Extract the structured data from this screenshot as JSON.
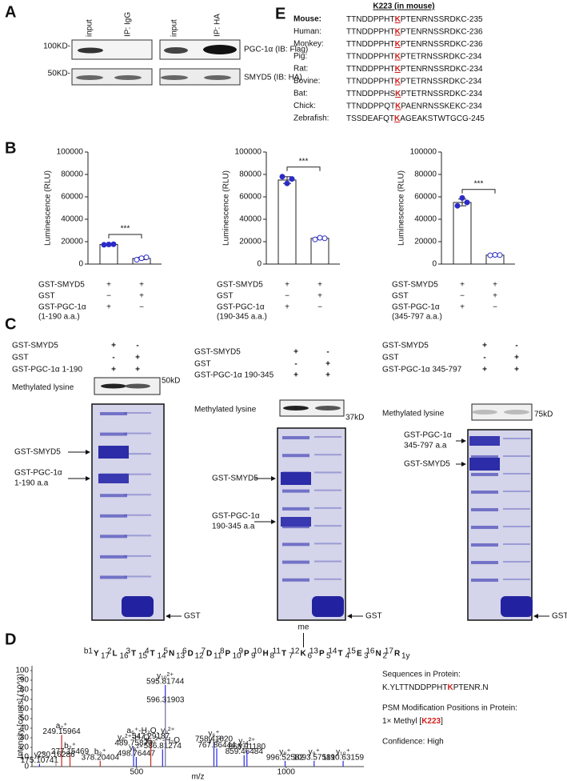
{
  "panel_a": {
    "label": "A",
    "lanes": [
      "input",
      "IP: IgG",
      "input",
      "IP: HA"
    ],
    "markers": [
      "100KD-",
      "50KD-"
    ],
    "blots": [
      "PGC-1α (IB: Flag)",
      "SMYD5 (IB: HA)"
    ]
  },
  "panel_e": {
    "label": "E",
    "title": "K223 (in mouse)",
    "highlight_color": "#d0201c",
    "rows": [
      {
        "species": "Mouse:",
        "before": "TTNDDPPHT",
        "k": "K",
        "after": "PTENRNSSRDKC-235"
      },
      {
        "species": "Human:",
        "before": "TTNDDPPHT",
        "k": "K",
        "after": "PTENRNSSRDKC-236"
      },
      {
        "species": "Monkey:",
        "before": "TTNDDPPHT",
        "k": "K",
        "after": "PTENRNSSRDKC-236"
      },
      {
        "species": "Pig:",
        "before": "TTNDDPPHT",
        "k": "K",
        "after": "PTETRNSSRDKC-234"
      },
      {
        "species": "Rat:",
        "before": "TTNDDPPHT",
        "k": "K",
        "after": "PTENRNSSRDKC-234"
      },
      {
        "species": "Bovine:",
        "before": "TTNDDPPHT",
        "k": "K",
        "after": "PTETRNSSRDKC-234"
      },
      {
        "species": "Bat:",
        "before": "TTNDDPPHS",
        "k": "K",
        "after": "PTETRNSSRDKC-234"
      },
      {
        "species": "Chick:",
        "before": "TTNDDPPQT",
        "k": "K",
        "after": "PAENRNSSKEKC-234"
      },
      {
        "species": "Zebrafish:",
        "before": "TSSDEAFQT",
        "k": "K",
        "after": "AGEAKSTWTGCG-245"
      }
    ]
  },
  "panel_b": {
    "label": "B"
  },
  "chart_data": [
    {
      "type": "bar",
      "ylabel": "Luminescence (RLU)",
      "ylim": [
        0,
        100000
      ],
      "yticks": [
        0,
        20000,
        40000,
        60000,
        80000,
        100000
      ],
      "values": [
        17500,
        5000
      ],
      "errors": [
        400,
        1000
      ],
      "points": [
        [
          17200,
          17500,
          17700
        ],
        [
          3800,
          5200,
          6000
        ]
      ],
      "colors": [
        "#2b2bc8",
        "#ffffff"
      ],
      "significance": "***",
      "rows": [
        {
          "label": [
            "GST-SMYD5"
          ],
          "signs": [
            "+",
            "+"
          ]
        },
        {
          "label": [
            "GST"
          ],
          "signs": [
            "−",
            "+"
          ]
        },
        {
          "label": [
            "GST-PGC-1α",
            "(1-190 a.a.)"
          ],
          "signs": [
            "+",
            "−"
          ]
        }
      ]
    },
    {
      "type": "bar",
      "ylabel": "Luminescence (RLU)",
      "ylim": [
        0,
        100000
      ],
      "yticks": [
        0,
        20000,
        40000,
        60000,
        80000,
        100000
      ],
      "values": [
        75000,
        23000
      ],
      "errors": [
        3000,
        800
      ],
      "points": [
        [
          78000,
          72000,
          76000
        ],
        [
          22000,
          23500,
          23000
        ]
      ],
      "colors": [
        "#2b2bc8",
        "#ffffff"
      ],
      "significance": "***",
      "rows": [
        {
          "label": [
            "GST-SMYD5"
          ],
          "signs": [
            "+",
            "+"
          ]
        },
        {
          "label": [
            "GST"
          ],
          "signs": [
            "−",
            "+"
          ]
        },
        {
          "label": [
            "GST-PGC-1α",
            "(190-345 a.a.)"
          ],
          "signs": [
            "+",
            "−"
          ]
        }
      ]
    },
    {
      "type": "bar",
      "ylabel": "Luminescence (RLU)",
      "ylim": [
        0,
        100000
      ],
      "yticks": [
        0,
        20000,
        40000,
        60000,
        80000,
        100000
      ],
      "values": [
        55000,
        8000
      ],
      "errors": [
        3000,
        300
      ],
      "points": [
        [
          52000,
          59000,
          55000
        ],
        [
          7800,
          8200,
          8000
        ]
      ],
      "colors": [
        "#2b2bc8",
        "#ffffff"
      ],
      "significance": "***",
      "rows": [
        {
          "label": [
            "GST-SMYD5"
          ],
          "signs": [
            "+",
            "+"
          ]
        },
        {
          "label": [
            "GST"
          ],
          "signs": [
            "−",
            "+"
          ]
        },
        {
          "label": [
            "GST-PGC-1α",
            "(345-797 a.a.)"
          ],
          "signs": [
            "+",
            "−"
          ]
        }
      ]
    },
    {
      "type": "stem",
      "xlabel": "m/z",
      "ylabel": "Intensity [counts] (10^3)",
      "xlim": [
        150,
        1260
      ],
      "ylim": [
        0,
        105
      ],
      "xticks": [
        500,
        1000
      ],
      "yticks": [
        0,
        10,
        20,
        30,
        40,
        50,
        60,
        70,
        80,
        90,
        100
      ],
      "peaks": [
        {
          "x": 175.10741,
          "y": 3,
          "color": "#2a2adf",
          "label": [
            "y₁⁺",
            "175.10741"
          ]
        },
        {
          "x": 230.16286,
          "y": 9,
          "color": "#999999",
          "label": [
            "230.16286"
          ]
        },
        {
          "x": 249.15964,
          "y": 33,
          "color": "#c0281c",
          "label": [
            "a₂⁺",
            "249.15964"
          ]
        },
        {
          "x": 277.15469,
          "y": 12,
          "color": "#c0281c",
          "label": [
            "b₂⁺",
            "277.15469"
          ]
        },
        {
          "x": 378.20404,
          "y": 6,
          "color": "#c0281c",
          "label": [
            "b₃⁺",
            "378.20404"
          ]
        },
        {
          "x": 489.7587,
          "y": 21,
          "color": "#2a2adf",
          "label": [
            "y₈²⁺-H₂O",
            "489.75870"
          ]
        },
        {
          "x": 498.76447,
          "y": 10,
          "color": "#2a2adf",
          "label": [
            "y₈²⁺",
            "498.76447"
          ]
        },
        {
          "x": 547.29187,
          "y": 28,
          "color": "#c0281c",
          "label": [
            "a₆⁺-H₂O, y₉²⁺",
            "547.29187"
          ]
        },
        {
          "x": 586.81274,
          "y": 18,
          "color": "#2a2adf",
          "label": [
            "y₁₀²⁺-H₂O",
            "586.81274"
          ]
        },
        {
          "x": 595.81744,
          "y": 85,
          "color": "#2a2adf",
          "label": [
            "y₁₀²⁺",
            "595.81744"
          ]
        },
        {
          "x": 596.31903,
          "y": 66,
          "color": "#999999",
          "label": [
            "596.31903"
          ]
        },
        {
          "x": 758.4162,
          "y": 25,
          "color": "#2a2adf",
          "label": [
            "y₆⁺",
            "758.41620"
          ]
        },
        {
          "x": 767.86444,
          "y": 19,
          "color": "#2a2adf",
          "label": [
            "y₁₃²⁺",
            "767.86444"
          ]
        },
        {
          "x": 859.46484,
          "y": 12,
          "color": "#2a2adf",
          "label": [
            "y₇⁺",
            "859.46484"
          ]
        },
        {
          "x": 868.9118,
          "y": 17,
          "color": "#2a2adf",
          "label": [
            "y₁₄²⁺",
            "868.91180"
          ]
        },
        {
          "x": 996.52582,
          "y": 6,
          "color": "#2a2adf",
          "label": [
            "y₈⁺",
            "996.52582"
          ]
        },
        {
          "x": 1093.57581,
          "y": 6,
          "color": "#2a2adf",
          "label": [
            "y₉⁺",
            "1093.57581"
          ]
        },
        {
          "x": 1190.63159,
          "y": 6,
          "color": "#2a2adf",
          "label": [
            "y₁₀⁺",
            "1190.63159"
          ]
        }
      ]
    }
  ],
  "panel_c": {
    "label": "C",
    "gels": [
      {
        "rows": [
          {
            "label": "GST-SMYD5",
            "signs": [
              "+",
              "-"
            ]
          },
          {
            "label": "GST",
            "signs": [
              "-",
              "+"
            ]
          },
          {
            "label": "GST-PGC-1α 1-190",
            "signs": [
              "+",
              "+"
            ]
          }
        ],
        "blot_label": "Methylated lysine",
        "marker": "50kD",
        "arrows": [
          [
            "GST-SMYD5"
          ],
          [
            "GST-PGC-1α",
            "1-190 a.a"
          ]
        ],
        "gst": "GST"
      },
      {
        "rows": [
          {
            "label": "GST-SMYD5",
            "signs": [
              "+",
              "-"
            ]
          },
          {
            "label": "GST",
            "signs": [
              "-",
              "+"
            ]
          },
          {
            "label": "GST-PGC-1α 190-345",
            "signs": [
              "+",
              "+"
            ]
          }
        ],
        "blot_label": "Methylated lysine",
        "marker": "37kD",
        "arrows": [
          [
            "GST-SMYD5"
          ],
          [
            "GST-PGC-1α",
            "190-345 a.a"
          ]
        ],
        "gst": "GST"
      },
      {
        "rows": [
          {
            "label": "GST-SMYD5",
            "signs": [
              "+",
              "-"
            ]
          },
          {
            "label": "GST",
            "signs": [
              "-",
              "+"
            ]
          },
          {
            "label": "GST-PGC-1α 345-797",
            "signs": [
              "+",
              "+"
            ]
          }
        ],
        "blot_label": "Methylated lysine",
        "marker": "75kD",
        "arrows": [
          [
            "GST-PGC-1α",
            "345-797 a.a"
          ],
          [
            "GST-SMYD5"
          ]
        ],
        "gst": "GST"
      }
    ]
  },
  "panel_d": {
    "label": "D",
    "modification": "me",
    "residues": [
      {
        "b": "b1",
        "aa": "Y",
        "y": "17"
      },
      {
        "b": "2",
        "aa": "L",
        "y": "16"
      },
      {
        "b": "3",
        "aa": "T",
        "y": "15"
      },
      {
        "b": "4",
        "aa": "T",
        "y": "14"
      },
      {
        "b": "5",
        "aa": "N",
        "y": "13"
      },
      {
        "b": "6",
        "aa": "D",
        "y": "12"
      },
      {
        "b": "7",
        "aa": "D",
        "y": "11"
      },
      {
        "b": "8",
        "aa": "P",
        "y": "10"
      },
      {
        "b": "9",
        "aa": "P",
        "y": "9"
      },
      {
        "b": "10",
        "aa": "H",
        "y": "8"
      },
      {
        "b": "11",
        "aa": "T",
        "y": "7"
      },
      {
        "b": "12",
        "aa": "K",
        "y": "6",
        "color": "#d0201c",
        "modified": true
      },
      {
        "b": "13",
        "aa": "P",
        "y": "5"
      },
      {
        "b": "14",
        "aa": "T",
        "y": "4"
      },
      {
        "b": "15",
        "aa": "E",
        "y": "3"
      },
      {
        "b": "16",
        "aa": "N",
        "y": "2"
      },
      {
        "b": "17",
        "aa": "R",
        "y": "1y"
      }
    ],
    "psm": {
      "seq_label": "Sequences in Protein:",
      "seq": [
        "K.YLTTNDDPPHT",
        "K",
        "PTENR.N"
      ],
      "mod_label": "PSM Modification Positions in Protein:",
      "mod": [
        "1× Methyl [",
        "K223",
        "]"
      ],
      "confidence": "Confidence: High",
      "highlight_color": "#d0201c"
    }
  }
}
